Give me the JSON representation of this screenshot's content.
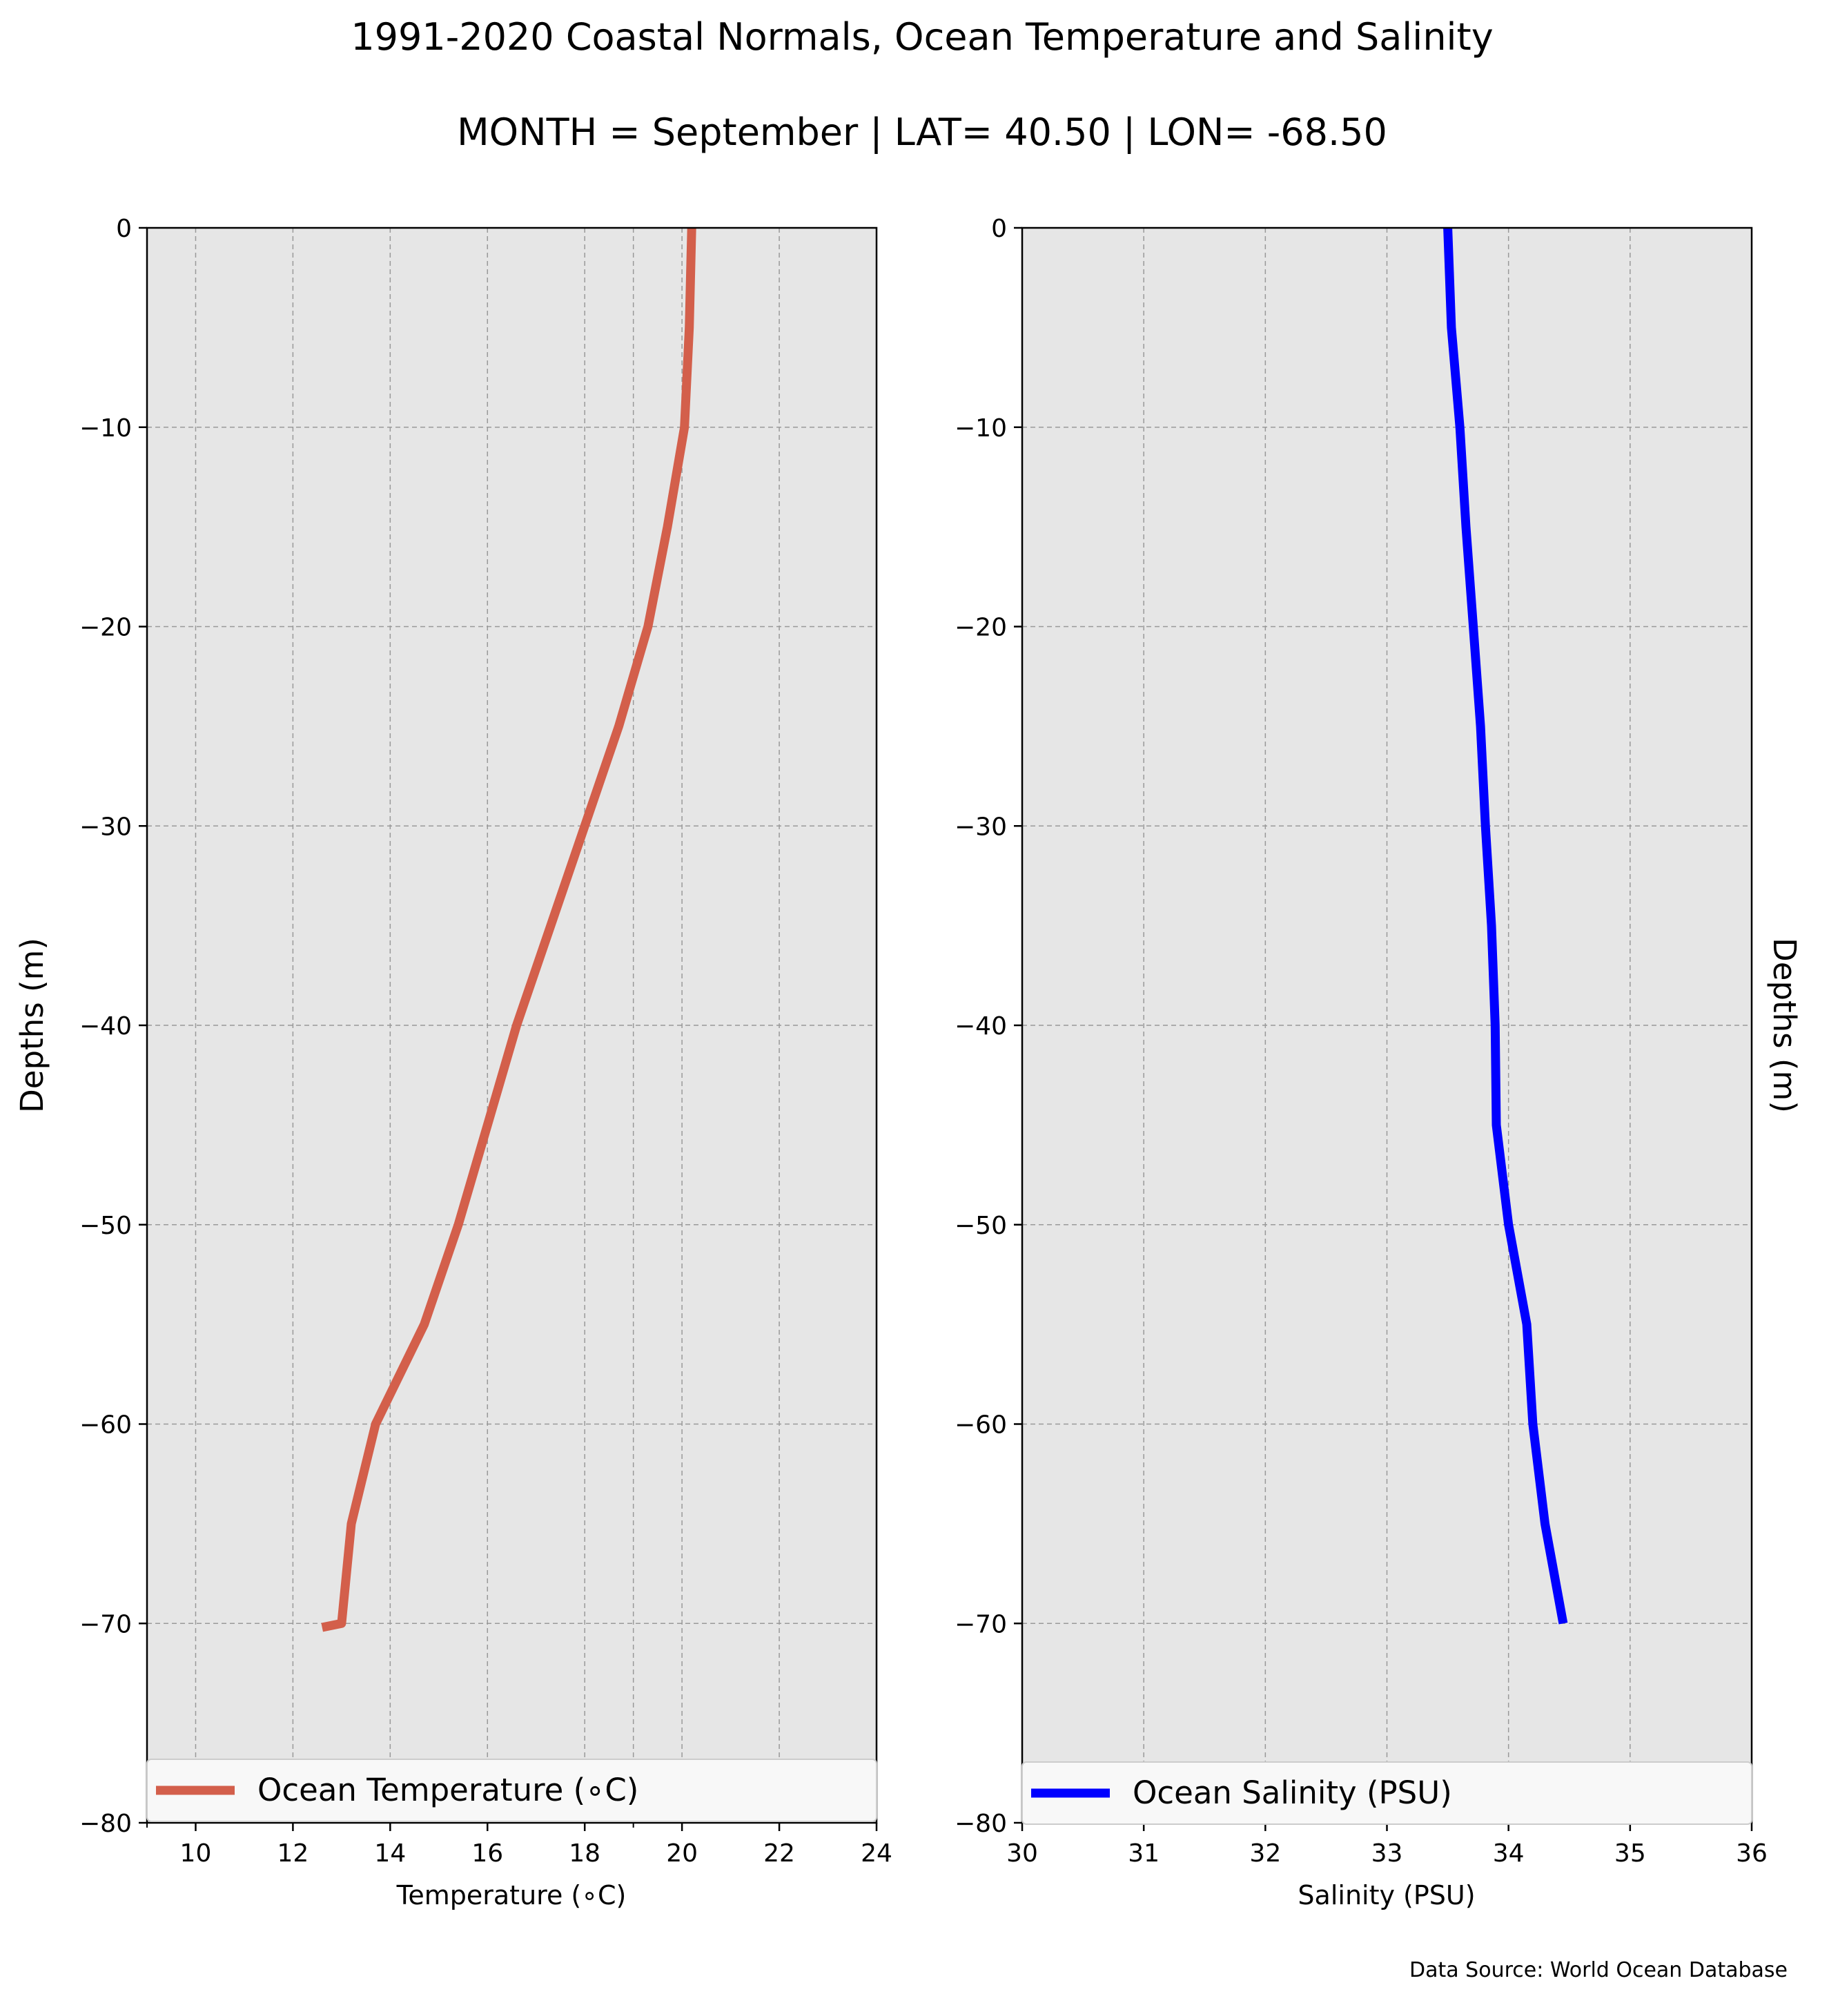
{
  "title": "1991-2020 Coastal Normals, Ocean Temperature and Salinity",
  "subtitle": "MONTH = September | LAT= 40.50 | LON= -68.50",
  "source": "Data Source: World Ocean Database",
  "colors": {
    "panel_bg": "#e6e6e6",
    "grid": "#999999",
    "temperature": "#d35f4b",
    "salinity": "#0000ff"
  },
  "chart_data": [
    {
      "type": "line",
      "xlabel": "Temperature ($^\\circ$C)",
      "xlabel_display": "Temperature (∘C)",
      "ylabel": "Depths (m)",
      "xlim": [
        9,
        24
      ],
      "ylim": [
        -80,
        0
      ],
      "xticks": [
        10,
        12,
        14,
        16,
        18,
        20,
        22,
        24
      ],
      "minor_xticks": [
        9,
        19
      ],
      "yticks": [
        0,
        -10,
        -20,
        -30,
        -40,
        -50,
        -60,
        -70,
        -80
      ],
      "ytick_labels": [
        "0",
        "−10",
        "−20",
        "−30",
        "−40",
        "−50",
        "−60",
        "−70",
        "−80"
      ],
      "grid": true,
      "legend_position": "lower center",
      "series": [
        {
          "name": "Ocean Temperature (∘C)",
          "color": "#d35f4b",
          "x": [
            20.2,
            20.15,
            20.05,
            19.7,
            19.3,
            18.7,
            18.0,
            17.3,
            16.6,
            16.0,
            15.4,
            14.7,
            13.7,
            13.2,
            13.0,
            12.6
          ],
          "y": [
            0,
            -5,
            -10,
            -15,
            -20,
            -25,
            -30,
            -35,
            -40,
            -45,
            -50,
            -55,
            -60,
            -65,
            -70,
            -70.2
          ]
        }
      ]
    },
    {
      "type": "line",
      "xlabel": "Salinity (PSU)",
      "ylabel": "Depths (m)",
      "xlim": [
        30,
        36
      ],
      "ylim": [
        -80,
        0
      ],
      "xticks": [
        30,
        31,
        32,
        33,
        34,
        35,
        36
      ],
      "yticks": [
        0,
        -10,
        -20,
        -30,
        -40,
        -50,
        -60,
        -70,
        -80
      ],
      "ytick_labels": [
        "0",
        "−10",
        "−20",
        "−30",
        "−40",
        "−50",
        "−60",
        "−70",
        "−80"
      ],
      "grid": true,
      "legend_position": "lower center",
      "series": [
        {
          "name": "Ocean Salinity (PSU)",
          "color": "#0000ff",
          "x": [
            33.5,
            33.53,
            33.6,
            33.65,
            33.71,
            33.77,
            33.81,
            33.86,
            33.89,
            33.9,
            34.0,
            34.15,
            34.2,
            34.3,
            34.45
          ],
          "y": [
            0,
            -5,
            -10,
            -15,
            -20,
            -25,
            -30,
            -35,
            -40,
            -45,
            -50,
            -55,
            -60,
            -65,
            -70
          ]
        }
      ]
    }
  ]
}
